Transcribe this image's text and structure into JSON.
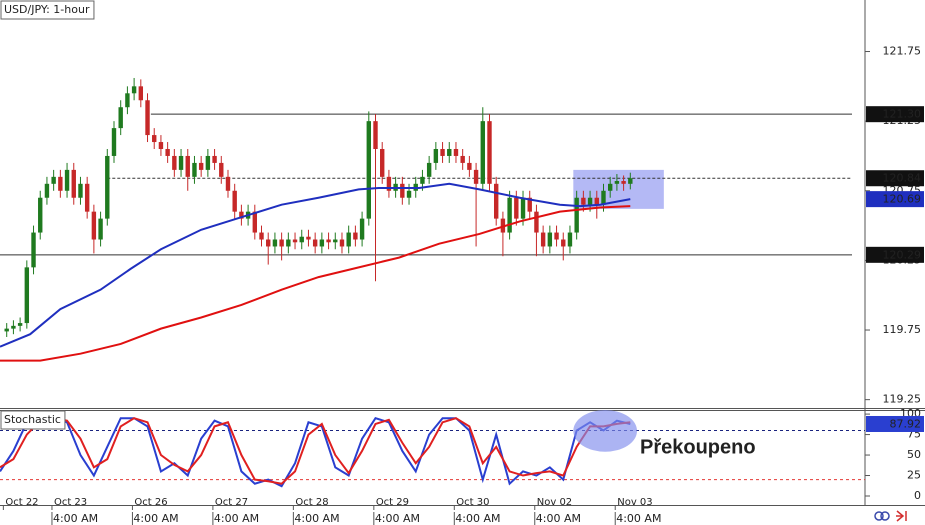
{
  "chart_data": [
    {
      "type": "candlestick",
      "title": "USD/JPY: 1-hour",
      "x": [
        2,
        4,
        6,
        8,
        10,
        12,
        14,
        16,
        18,
        20,
        22,
        24,
        26,
        28,
        30,
        32,
        34,
        36,
        38,
        40,
        42,
        44,
        46,
        48,
        50,
        52,
        54,
        56,
        58,
        60,
        62,
        64,
        66,
        68,
        70,
        72,
        74,
        76,
        78,
        80,
        82,
        84,
        86,
        88,
        90,
        92,
        94,
        96,
        98,
        100,
        102,
        104,
        106,
        108,
        110,
        112,
        114,
        116,
        118,
        120,
        122,
        124,
        126,
        128,
        130,
        132,
        134,
        136,
        138,
        140,
        142,
        144,
        146,
        148,
        150,
        152,
        154,
        156,
        158,
        160,
        162,
        164,
        166,
        168,
        170,
        172,
        174,
        176,
        178,
        180,
        182,
        184,
        186,
        188
      ],
      "ohlc": [
        [
          119.74,
          119.8,
          119.7,
          119.76
        ],
        [
          119.76,
          119.82,
          119.72,
          119.78
        ],
        [
          119.78,
          119.84,
          119.74,
          119.8
        ],
        [
          119.8,
          120.25,
          119.76,
          120.2
        ],
        [
          120.2,
          120.5,
          120.15,
          120.45
        ],
        [
          120.45,
          120.75,
          120.4,
          120.7
        ],
        [
          120.7,
          120.85,
          120.65,
          120.8
        ],
        [
          120.8,
          120.9,
          120.75,
          120.85
        ],
        [
          120.85,
          120.9,
          120.7,
          120.75
        ],
        [
          120.75,
          120.95,
          120.7,
          120.9
        ],
        [
          120.9,
          120.95,
          120.65,
          120.7
        ],
        [
          120.7,
          120.85,
          120.65,
          120.8
        ],
        [
          120.8,
          120.85,
          120.55,
          120.6
        ],
        [
          120.6,
          120.65,
          120.3,
          120.4
        ],
        [
          120.4,
          120.6,
          120.35,
          120.55
        ],
        [
          120.55,
          121.05,
          120.5,
          121.0
        ],
        [
          121.0,
          121.25,
          120.95,
          121.2
        ],
        [
          121.2,
          121.4,
          121.15,
          121.35
        ],
        [
          121.35,
          121.5,
          121.3,
          121.45
        ],
        [
          121.45,
          121.56,
          121.4,
          121.5
        ],
        [
          121.5,
          121.55,
          121.35,
          121.4
        ],
        [
          121.4,
          121.45,
          121.1,
          121.15
        ],
        [
          121.15,
          121.2,
          121.05,
          121.1
        ],
        [
          121.1,
          121.15,
          121.0,
          121.05
        ],
        [
          121.05,
          121.1,
          120.95,
          121.0
        ],
        [
          121.0,
          121.05,
          120.85,
          120.9
        ],
        [
          120.9,
          121.05,
          120.85,
          121.0
        ],
        [
          121.0,
          121.05,
          120.75,
          120.85
        ],
        [
          120.85,
          121.0,
          120.8,
          120.95
        ],
        [
          120.95,
          121.0,
          120.85,
          120.9
        ],
        [
          120.9,
          121.05,
          120.85,
          121.0
        ],
        [
          121.0,
          121.05,
          120.9,
          120.95
        ],
        [
          120.95,
          121.0,
          120.8,
          120.85
        ],
        [
          120.85,
          120.9,
          120.7,
          120.75
        ],
        [
          120.75,
          120.8,
          120.55,
          120.6
        ],
        [
          120.6,
          120.65,
          120.5,
          120.55
        ],
        [
          120.55,
          120.65,
          120.5,
          120.6
        ],
        [
          120.6,
          120.65,
          120.4,
          120.45
        ],
        [
          120.45,
          120.5,
          120.35,
          120.4
        ],
        [
          120.4,
          120.45,
          120.22,
          120.35
        ],
        [
          120.35,
          120.45,
          120.3,
          120.4
        ],
        [
          120.4,
          120.45,
          120.25,
          120.35
        ],
        [
          120.35,
          120.45,
          120.3,
          120.4
        ],
        [
          120.4,
          120.45,
          120.33,
          120.38
        ],
        [
          120.38,
          120.47,
          120.33,
          120.42
        ],
        [
          120.42,
          120.47,
          120.35,
          120.4
        ],
        [
          120.4,
          120.45,
          120.3,
          120.35
        ],
        [
          120.35,
          120.45,
          120.3,
          120.4
        ],
        [
          120.4,
          120.45,
          120.33,
          120.38
        ],
        [
          120.38,
          120.45,
          120.33,
          120.4
        ],
        [
          120.4,
          120.45,
          120.3,
          120.35
        ],
        [
          120.35,
          120.5,
          120.3,
          120.45
        ],
        [
          120.45,
          120.5,
          120.35,
          120.4
        ],
        [
          120.4,
          120.6,
          120.35,
          120.55
        ],
        [
          120.55,
          121.32,
          120.5,
          121.25
        ],
        [
          121.25,
          121.3,
          120.1,
          121.05
        ],
        [
          121.05,
          121.1,
          120.8,
          120.85
        ],
        [
          120.85,
          120.9,
          120.7,
          120.75
        ],
        [
          120.75,
          120.85,
          120.7,
          120.8
        ],
        [
          120.8,
          120.85,
          120.65,
          120.7
        ],
        [
          120.7,
          120.8,
          120.65,
          120.75
        ],
        [
          120.75,
          120.85,
          120.7,
          120.8
        ],
        [
          120.8,
          120.9,
          120.75,
          120.85
        ],
        [
          120.85,
          121.0,
          120.8,
          120.95
        ],
        [
          120.95,
          121.1,
          120.9,
          121.05
        ],
        [
          121.05,
          121.1,
          120.95,
          121.0
        ],
        [
          121.0,
          121.1,
          120.95,
          121.05
        ],
        [
          121.05,
          121.1,
          120.95,
          121.0
        ],
        [
          121.0,
          121.05,
          120.9,
          120.95
        ],
        [
          120.95,
          121.0,
          120.85,
          120.9
        ],
        [
          120.9,
          120.95,
          120.35,
          120.8
        ],
        [
          120.8,
          121.35,
          120.75,
          121.25
        ],
        [
          121.25,
          121.3,
          120.75,
          120.8
        ],
        [
          120.8,
          120.85,
          120.5,
          120.55
        ],
        [
          120.55,
          120.6,
          120.28,
          120.45
        ],
        [
          120.45,
          120.75,
          120.4,
          120.7
        ],
        [
          120.7,
          120.75,
          120.5,
          120.55
        ],
        [
          120.55,
          120.75,
          120.5,
          120.7
        ],
        [
          120.7,
          120.75,
          120.55,
          120.6
        ],
        [
          120.6,
          120.65,
          120.28,
          120.45
        ],
        [
          120.45,
          120.5,
          120.3,
          120.35
        ],
        [
          120.35,
          120.5,
          120.3,
          120.45
        ],
        [
          120.45,
          120.5,
          120.35,
          120.4
        ],
        [
          120.4,
          120.45,
          120.25,
          120.35
        ],
        [
          120.35,
          120.5,
          120.3,
          120.45
        ],
        [
          120.45,
          120.75,
          120.4,
          120.7
        ],
        [
          120.7,
          120.75,
          120.6,
          120.65
        ],
        [
          120.65,
          120.75,
          120.6,
          120.7
        ],
        [
          120.7,
          120.75,
          120.55,
          120.65
        ],
        [
          120.65,
          120.8,
          120.6,
          120.75
        ],
        [
          120.75,
          120.85,
          120.7,
          120.8
        ],
        [
          120.8,
          120.87,
          120.75,
          120.82
        ],
        [
          120.82,
          120.86,
          120.75,
          120.8
        ],
        [
          120.8,
          120.88,
          120.76,
          120.84
        ]
      ],
      "up_color": "#1f7a1f",
      "down_color": "#c62828",
      "series": [
        {
          "color": "#1f2fbf",
          "last_label": true,
          "x": [
            0,
            9,
            18,
            30,
            39,
            48,
            60,
            72,
            84,
            95,
            107,
            113,
            125,
            134,
            143,
            155,
            167,
            173,
            179,
            188
          ],
          "values": [
            119.63,
            119.72,
            119.9,
            120.04,
            120.19,
            120.33,
            120.47,
            120.56,
            120.65,
            120.7,
            120.76,
            120.77,
            120.77,
            120.8,
            120.76,
            120.7,
            120.65,
            120.64,
            120.65,
            120.69
          ]
        },
        {
          "color": "#e01010",
          "x": [
            0,
            12,
            24,
            36,
            48,
            60,
            72,
            84,
            95,
            107,
            119,
            131,
            143,
            155,
            167,
            179,
            188
          ],
          "values": [
            119.53,
            119.53,
            119.58,
            119.65,
            119.76,
            119.84,
            119.93,
            120.04,
            120.13,
            120.2,
            120.27,
            120.37,
            120.44,
            120.53,
            120.6,
            120.63,
            120.64
          ]
        }
      ],
      "xlim": [
        0,
        258
      ],
      "ylim": [
        119.19,
        122.12
      ],
      "yticks": [
        121.75,
        121.25,
        120.75,
        120.25,
        119.75,
        119.25
      ],
      "levels": [
        {
          "value": 121.3,
          "label": "121.30",
          "start": 45,
          "dashed": false
        },
        {
          "value": 120.84,
          "start": 32,
          "dashed": true
        },
        {
          "value": 120.29,
          "start": 0,
          "dashed": false
        }
      ],
      "highlight": {
        "shape": "rect",
        "x": [
          171,
          198
        ],
        "y": [
          120.62,
          120.9
        ],
        "color": "#8c93f0"
      }
    },
    {
      "type": "line",
      "title": "Stochastic",
      "x": [
        0,
        4,
        8,
        12,
        16,
        20,
        24,
        28,
        32,
        36,
        40,
        44,
        48,
        52,
        56,
        60,
        64,
        68,
        72,
        76,
        80,
        84,
        88,
        92,
        96,
        100,
        104,
        108,
        112,
        116,
        120,
        124,
        128,
        132,
        136,
        140,
        144,
        148,
        152,
        156,
        160,
        164,
        168,
        172,
        176,
        180,
        184,
        188
      ],
      "series": [
        {
          "color": "#2a3fd0",
          "last_label": true,
          "values": [
            30,
            55,
            90,
            95,
            95,
            90,
            50,
            25,
            60,
            95,
            95,
            85,
            30,
            40,
            25,
            70,
            92,
            85,
            30,
            15,
            20,
            12,
            40,
            90,
            85,
            35,
            25,
            70,
            95,
            90,
            55,
            30,
            75,
            95,
            95,
            80,
            20,
            75,
            15,
            30,
            25,
            35,
            20,
            80,
            90,
            80,
            92,
            87.92
          ]
        },
        {
          "color": "#e02020",
          "values": [
            35,
            45,
            75,
            92,
            95,
            92,
            70,
            35,
            45,
            85,
            95,
            90,
            50,
            38,
            30,
            50,
            85,
            90,
            50,
            20,
            18,
            15,
            30,
            75,
            88,
            50,
            28,
            55,
            88,
            93,
            65,
            40,
            60,
            90,
            95,
            85,
            40,
            60,
            30,
            25,
            28,
            30,
            25,
            60,
            85,
            85,
            88,
            90
          ]
        }
      ],
      "xlim": [
        0,
        258
      ],
      "ylim": [
        -11,
        105
      ],
      "yticks": [
        100,
        75,
        50,
        25,
        0
      ],
      "levels": [
        {
          "value": 80,
          "color": "#1a237e"
        },
        {
          "value": 20,
          "color": "#e53935"
        }
      ],
      "highlight": {
        "shape": "ellipse",
        "x": [
          171,
          190
        ],
        "y": [
          54,
          105
        ],
        "color": "#7f8cec"
      },
      "annotation": "Překoupeno",
      "xticks": [
        {
          "value": 1,
          "label": "Oct 22"
        },
        {
          "value": 15.5,
          "label": "Oct 23"
        },
        {
          "value": 39.5,
          "label": "Oct 26"
        },
        {
          "value": 63.5,
          "label": "Oct 27"
        },
        {
          "value": 87.5,
          "label": "Oct 28"
        },
        {
          "value": 111.5,
          "label": "Oct 29"
        },
        {
          "value": 135.5,
          "label": "Oct 30"
        },
        {
          "value": 159.5,
          "label": "Nov 02"
        },
        {
          "value": 183.5,
          "label": "Nov 03"
        }
      ],
      "xticks2": [
        {
          "value": 15.5,
          "label": "4:00 AM"
        },
        {
          "value": 39.5,
          "label": "4:00 AM"
        },
        {
          "value": 63.5,
          "label": "4:00 AM"
        },
        {
          "value": 87.5,
          "label": "4:00 AM"
        },
        {
          "value": 111.5,
          "label": "4:00 AM"
        },
        {
          "value": 135.5,
          "label": "4:00 AM"
        },
        {
          "value": 159.5,
          "label": "4:00 AM"
        },
        {
          "value": 183.5,
          "label": "4:00 AM"
        }
      ]
    }
  ]
}
